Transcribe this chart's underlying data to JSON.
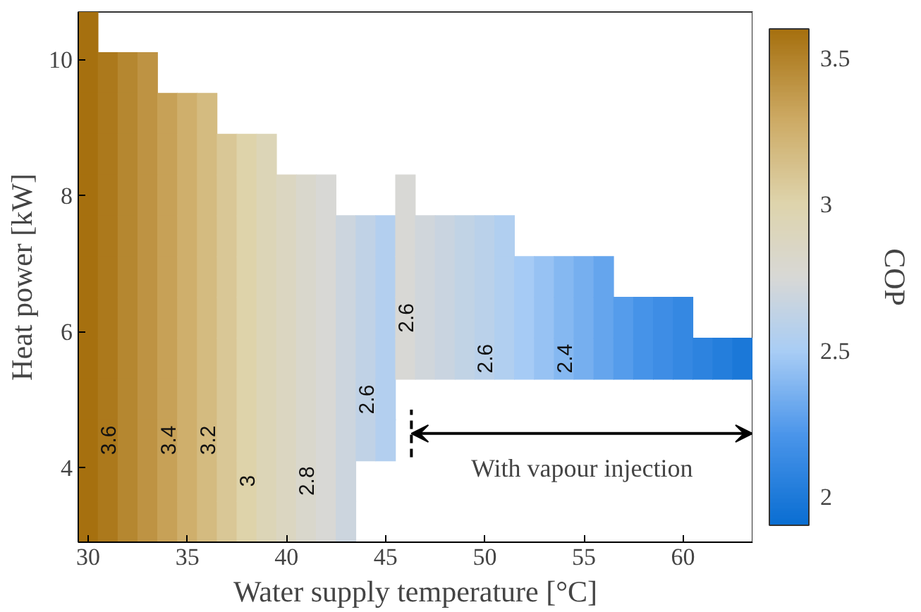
{
  "chart_data": {
    "type": "scatter",
    "marker": "square",
    "xlabel": "Water supply temperature [°C]",
    "ylabel": "Heat power [kW]",
    "clabel": "COP",
    "xlim": [
      29.5,
      63.5
    ],
    "xticks": [
      30,
      35,
      40,
      45,
      50,
      55,
      60
    ],
    "ylim": [
      2.9,
      10.7
    ],
    "yticks": [
      4,
      6,
      8,
      10
    ],
    "clim": [
      1.9,
      3.6
    ],
    "cticks": [
      2,
      2.5,
      3,
      3.5
    ],
    "series": [
      {
        "x": [
          30,
          30,
          30,
          30,
          30,
          30,
          30,
          30,
          30,
          30,
          30,
          30,
          30
        ],
        "values": [
          10.4,
          9.8,
          9.2,
          8.6,
          8.0,
          7.4,
          6.8,
          6.2,
          5.6,
          5.0,
          4.4,
          3.8,
          3.2
        ],
        "cvalues": [
          3.6,
          3.6,
          3.6,
          3.6,
          3.6,
          3.6,
          3.6,
          3.6,
          3.6,
          3.6,
          3.6,
          3.6,
          3.6
        ]
      },
      {
        "x": [
          31,
          31,
          31,
          31,
          31,
          31,
          31,
          31,
          31,
          31,
          31,
          31
        ],
        "values": [
          9.8,
          9.2,
          8.6,
          8.0,
          7.4,
          6.8,
          6.2,
          5.6,
          5.0,
          4.4,
          3.8,
          3.2
        ],
        "cvalues": [
          3.55,
          3.55,
          3.55,
          3.55,
          3.55,
          3.55,
          3.55,
          3.55,
          3.55,
          3.55,
          3.55,
          3.55
        ]
      },
      {
        "x": [
          32,
          32,
          32,
          32,
          32,
          32,
          32,
          32,
          32,
          32,
          32,
          32
        ],
        "values": [
          9.8,
          9.2,
          8.6,
          8.0,
          7.4,
          6.8,
          6.2,
          5.6,
          5.0,
          4.4,
          3.8,
          3.2
        ],
        "cvalues": [
          3.48,
          3.48,
          3.48,
          3.48,
          3.48,
          3.48,
          3.48,
          3.48,
          3.48,
          3.48,
          3.48,
          3.48
        ]
      },
      {
        "x": [
          33,
          33,
          33,
          33,
          33,
          33,
          33,
          33,
          33,
          33,
          33,
          33
        ],
        "values": [
          9.8,
          9.2,
          8.6,
          8.0,
          7.4,
          6.8,
          6.2,
          5.6,
          5.0,
          4.4,
          3.8,
          3.2
        ],
        "cvalues": [
          3.41,
          3.41,
          3.41,
          3.41,
          3.41,
          3.41,
          3.41,
          3.41,
          3.41,
          3.41,
          3.41,
          3.41
        ]
      },
      {
        "x": [
          34,
          34,
          34,
          34,
          34,
          34,
          34,
          34,
          34,
          34,
          34
        ],
        "values": [
          9.2,
          8.6,
          8.0,
          7.4,
          6.8,
          6.2,
          5.6,
          5.0,
          4.4,
          3.8,
          3.2
        ],
        "cvalues": [
          3.34,
          3.34,
          3.34,
          3.34,
          3.34,
          3.34,
          3.34,
          3.34,
          3.34,
          3.34,
          3.34
        ]
      },
      {
        "x": [
          35,
          35,
          35,
          35,
          35,
          35,
          35,
          35,
          35,
          35,
          35
        ],
        "values": [
          9.2,
          8.6,
          8.0,
          7.4,
          6.8,
          6.2,
          5.6,
          5.0,
          4.4,
          3.8,
          3.2
        ],
        "cvalues": [
          3.26,
          3.26,
          3.26,
          3.26,
          3.26,
          3.26,
          3.26,
          3.26,
          3.26,
          3.26,
          3.26
        ]
      },
      {
        "x": [
          36,
          36,
          36,
          36,
          36,
          36,
          36,
          36,
          36,
          36,
          36
        ],
        "values": [
          9.2,
          8.6,
          8.0,
          7.4,
          6.8,
          6.2,
          5.6,
          5.0,
          4.4,
          3.8,
          3.2
        ],
        "cvalues": [
          3.18,
          3.18,
          3.18,
          3.18,
          3.18,
          3.18,
          3.18,
          3.18,
          3.18,
          3.18,
          3.18
        ]
      },
      {
        "x": [
          37,
          37,
          37,
          37,
          37,
          37,
          37,
          37,
          37,
          37
        ],
        "values": [
          8.6,
          8.0,
          7.4,
          6.8,
          6.2,
          5.6,
          5.0,
          4.4,
          3.8,
          3.2
        ],
        "cvalues": [
          3.09,
          3.09,
          3.09,
          3.09,
          3.09,
          3.09,
          3.09,
          3.09,
          3.09,
          3.09
        ]
      },
      {
        "x": [
          38,
          38,
          38,
          38,
          38,
          38,
          38,
          38,
          38,
          38
        ],
        "values": [
          8.6,
          8.0,
          7.4,
          6.8,
          6.2,
          5.6,
          5.0,
          4.4,
          3.8,
          3.2
        ],
        "cvalues": [
          3.01,
          3.01,
          3.01,
          3.01,
          3.01,
          3.01,
          3.01,
          3.01,
          3.01,
          3.01
        ]
      },
      {
        "x": [
          39,
          39,
          39,
          39,
          39,
          39,
          39,
          39,
          39,
          39
        ],
        "values": [
          8.6,
          8.0,
          7.4,
          6.8,
          6.2,
          5.6,
          5.0,
          4.4,
          3.8,
          3.2
        ],
        "cvalues": [
          2.94,
          2.94,
          2.94,
          2.94,
          2.94,
          2.94,
          2.94,
          2.94,
          2.94,
          2.94
        ]
      },
      {
        "x": [
          40,
          40,
          40,
          40,
          40,
          40,
          40,
          40,
          40
        ],
        "values": [
          8.0,
          7.4,
          6.8,
          6.2,
          5.6,
          5.0,
          4.4,
          3.8,
          3.2
        ],
        "cvalues": [
          2.88,
          2.88,
          2.88,
          2.88,
          2.88,
          2.88,
          2.88,
          2.88,
          2.88
        ]
      },
      {
        "x": [
          41,
          41,
          41,
          41,
          41,
          41,
          41,
          41,
          41
        ],
        "values": [
          8.0,
          7.4,
          6.8,
          6.2,
          5.6,
          5.0,
          4.4,
          3.8,
          3.2
        ],
        "cvalues": [
          2.81,
          2.81,
          2.81,
          2.81,
          2.81,
          2.81,
          2.81,
          2.81,
          2.81
        ]
      },
      {
        "x": [
          42,
          42,
          42,
          42,
          42,
          42,
          42,
          42,
          42
        ],
        "values": [
          8.0,
          7.4,
          6.8,
          6.2,
          5.6,
          5.0,
          4.4,
          3.8,
          3.2
        ],
        "cvalues": [
          2.75,
          2.75,
          2.75,
          2.75,
          2.75,
          2.75,
          2.75,
          2.75,
          2.75
        ]
      },
      {
        "x": [
          43,
          43,
          43,
          43,
          43,
          43,
          43,
          43
        ],
        "values": [
          7.4,
          6.8,
          6.2,
          5.6,
          5.0,
          4.4,
          3.8,
          3.2
        ],
        "cvalues": [
          2.69,
          2.69,
          2.69,
          2.69,
          2.69,
          2.69,
          2.69,
          2.69
        ]
      },
      {
        "x": [
          44,
          44,
          44,
          44,
          44,
          44
        ],
        "values": [
          7.4,
          6.8,
          6.2,
          5.6,
          5.0,
          4.4
        ],
        "cvalues": [
          2.62,
          2.62,
          2.62,
          2.62,
          2.62,
          2.62
        ]
      },
      {
        "x": [
          45,
          45,
          45,
          45,
          45,
          45
        ],
        "values": [
          7.4,
          6.8,
          6.2,
          5.6,
          5.0,
          4.4
        ],
        "cvalues": [
          2.55,
          2.55,
          2.55,
          2.55,
          2.55,
          2.55
        ]
      },
      {
        "x": [
          46,
          46,
          46,
          46,
          46
        ],
        "values": [
          8.0,
          7.4,
          6.8,
          6.2,
          5.6
        ],
        "cvalues": [
          2.75,
          2.75,
          2.75,
          2.75,
          2.75
        ]
      },
      {
        "x": [
          47,
          47,
          47,
          47
        ],
        "values": [
          7.4,
          6.8,
          6.2,
          5.6
        ],
        "cvalues": [
          2.71,
          2.71,
          2.71,
          2.71
        ]
      },
      {
        "x": [
          48,
          48,
          48,
          48
        ],
        "values": [
          7.4,
          6.8,
          6.2,
          5.6
        ],
        "cvalues": [
          2.67,
          2.67,
          2.67,
          2.67
        ]
      },
      {
        "x": [
          49,
          49,
          49,
          49
        ],
        "values": [
          7.4,
          6.8,
          6.2,
          5.6
        ],
        "cvalues": [
          2.63,
          2.63,
          2.63,
          2.63
        ]
      },
      {
        "x": [
          50,
          50,
          50,
          50
        ],
        "values": [
          7.4,
          6.8,
          6.2,
          5.6
        ],
        "cvalues": [
          2.59,
          2.59,
          2.59,
          2.59
        ]
      },
      {
        "x": [
          51,
          51,
          51,
          51
        ],
        "values": [
          7.4,
          6.8,
          6.2,
          5.6
        ],
        "cvalues": [
          2.54,
          2.54,
          2.54,
          2.54
        ]
      },
      {
        "x": [
          52,
          52,
          52
        ],
        "values": [
          6.8,
          6.2,
          5.6
        ],
        "cvalues": [
          2.49,
          2.49,
          2.49
        ]
      },
      {
        "x": [
          53,
          53,
          53
        ],
        "values": [
          6.8,
          6.2,
          5.6
        ],
        "cvalues": [
          2.44,
          2.44,
          2.44
        ]
      },
      {
        "x": [
          54,
          54,
          54
        ],
        "values": [
          6.8,
          6.2,
          5.6
        ],
        "cvalues": [
          2.39,
          2.39,
          2.39
        ]
      },
      {
        "x": [
          55,
          55,
          55
        ],
        "values": [
          6.8,
          6.2,
          5.6
        ],
        "cvalues": [
          2.34,
          2.34,
          2.34
        ]
      },
      {
        "x": [
          56,
          56,
          56
        ],
        "values": [
          6.8,
          6.2,
          5.6
        ],
        "cvalues": [
          2.29,
          2.29,
          2.29
        ]
      },
      {
        "x": [
          57,
          57
        ],
        "values": [
          6.2,
          5.6
        ],
        "cvalues": [
          2.24,
          2.24
        ]
      },
      {
        "x": [
          58,
          58
        ],
        "values": [
          6.2,
          5.6
        ],
        "cvalues": [
          2.19,
          2.19
        ]
      },
      {
        "x": [
          59,
          59
        ],
        "values": [
          6.2,
          5.6
        ],
        "cvalues": [
          2.15,
          2.15
        ]
      },
      {
        "x": [
          60,
          60
        ],
        "values": [
          6.2,
          5.6
        ],
        "cvalues": [
          2.11,
          2.11
        ]
      },
      {
        "x": [
          61
        ],
        "values": [
          5.6
        ],
        "cvalues": [
          2.07
        ]
      },
      {
        "x": [
          62
        ],
        "values": [
          5.6
        ],
        "cvalues": [
          2.03
        ]
      },
      {
        "x": [
          63
        ],
        "values": [
          5.6
        ],
        "cvalues": [
          1.98
        ]
      }
    ],
    "annotations": [
      {
        "text": "3.6",
        "x": 31,
        "y": 4.4
      },
      {
        "text": "3.4",
        "x": 34,
        "y": 4.4
      },
      {
        "text": "3.2",
        "x": 36,
        "y": 4.4
      },
      {
        "text": "3",
        "x": 38,
        "y": 3.8
      },
      {
        "text": "2.8",
        "x": 41,
        "y": 3.8
      },
      {
        "text": "2.6",
        "x": 44,
        "y": 5.0
      },
      {
        "text": "2.6",
        "x": 46,
        "y": 6.2
      },
      {
        "text": "2.6",
        "x": 50,
        "y": 5.6
      },
      {
        "text": "2.4",
        "x": 54,
        "y": 5.6
      },
      "With vapour injection"
    ],
    "ref_lines": [
      {
        "axis": "x",
        "value": 46.3,
        "line_style": "dashed"
      }
    ]
  }
}
